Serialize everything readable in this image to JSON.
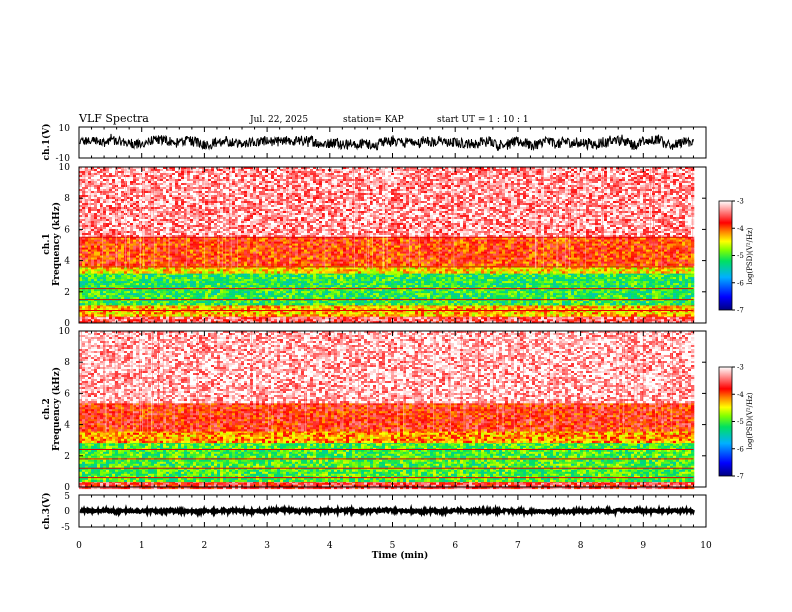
{
  "header": {
    "title": "VLF Spectra",
    "date": "Jul. 22, 2025",
    "station": "station= KAP",
    "start": "start  UT =   1 : 10 : 1"
  },
  "chart_data": [
    {
      "type": "line",
      "name": "ch1-waveform",
      "ylabel": "ch.1(V)",
      "ylim": [
        -10,
        10
      ],
      "ytick_labels": [
        "10",
        "-10"
      ],
      "xlim": [
        0,
        10
      ],
      "series": [
        {
          "name": "ch.1",
          "x_range": [
            0,
            9.8
          ],
          "mean": 0,
          "amplitude": 5
        }
      ]
    },
    {
      "type": "heatmap",
      "name": "ch1-spectrogram",
      "ylabel": "ch.1\nFrequency (kHz)",
      "ylim": [
        0,
        10
      ],
      "yticks": [
        0,
        2,
        4,
        6,
        8,
        10
      ],
      "ytick_labels": [
        "0",
        "2",
        "4",
        "6",
        "8",
        "10"
      ],
      "xlim": [
        0,
        10
      ],
      "data_x_end": 9.8,
      "bands_khz": [
        {
          "from": 0,
          "to": 0.5,
          "level": -3.5
        },
        {
          "from": 0.5,
          "to": 1.2,
          "level": -4.3
        },
        {
          "from": 1.2,
          "to": 3.2,
          "level": -5.1
        },
        {
          "from": 3.2,
          "to": 3.7,
          "level": -4.4
        },
        {
          "from": 3.7,
          "to": 5.6,
          "level": -3.9
        },
        {
          "from": 5.6,
          "to": 10,
          "level": -3.3
        }
      ],
      "lines_khz": [
        0.8,
        1.5,
        2.2,
        3.6,
        5.5
      ],
      "colorbar": {
        "label": "log(PSD)(V²/Hz)",
        "ticks": [
          -3,
          -4,
          -5,
          -6,
          -7
        ],
        "tick_labels": [
          "-3",
          "-4",
          "-5",
          "-6",
          "-7"
        ],
        "range": [
          -7,
          -3
        ]
      }
    },
    {
      "type": "heatmap",
      "name": "ch2-spectrogram",
      "ylabel": "ch.2\nFrequency (kHz)",
      "ylim": [
        0,
        10
      ],
      "yticks": [
        0,
        2,
        4,
        6,
        8,
        10
      ],
      "ytick_labels": [
        "0",
        "2",
        "4",
        "6",
        "8",
        "10"
      ],
      "xlim": [
        0,
        10
      ],
      "data_x_end": 9.8,
      "bands_khz": [
        {
          "from": 0,
          "to": 0.4,
          "level": -3.6
        },
        {
          "from": 0.4,
          "to": 2.9,
          "level": -5.0
        },
        {
          "from": 2.9,
          "to": 3.6,
          "level": -4.2
        },
        {
          "from": 3.6,
          "to": 5.5,
          "level": -3.8
        },
        {
          "from": 5.5,
          "to": 10,
          "level": -3.2
        }
      ],
      "lines_khz": [
        0.6,
        1.2,
        1.8,
        2.4
      ],
      "colorbar": {
        "label": "log(PSD)(V²/Hz)",
        "ticks": [
          -3,
          -4,
          -5,
          -6,
          -7
        ],
        "tick_labels": [
          "-3",
          "-4",
          "-5",
          "-6",
          "-7"
        ],
        "range": [
          -7,
          -3
        ]
      }
    },
    {
      "type": "line",
      "name": "ch3-waveform",
      "ylabel": "ch.3(V)",
      "ylim": [
        -5,
        5
      ],
      "ytick_labels": [
        "5",
        "0",
        "-5"
      ],
      "xlim": [
        0,
        10
      ],
      "xticks": [
        0,
        1,
        2,
        3,
        4,
        5,
        6,
        7,
        8,
        9,
        10
      ],
      "xtick_labels": [
        "0",
        "1",
        "2",
        "3",
        "4",
        "5",
        "6",
        "7",
        "8",
        "9",
        "10"
      ],
      "xlabel": "Time (min)",
      "series": [
        {
          "name": "ch.3",
          "x_range": [
            0,
            9.8
          ],
          "mean": 0,
          "amplitude": 0.6
        }
      ]
    }
  ],
  "colors": {
    "axis": "#000000",
    "waveform": "#000000",
    "colormap": [
      "#000080",
      "#0000ff",
      "#00a0ff",
      "#00e060",
      "#80ff00",
      "#ffff00",
      "#ff8000",
      "#ff0000",
      "#ffffff"
    ]
  }
}
